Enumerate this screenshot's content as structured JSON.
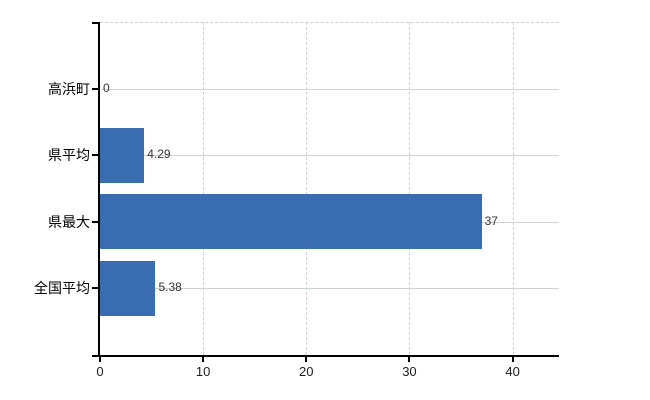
{
  "page": {
    "background": "#ffffff"
  },
  "chart_data": {
    "type": "bar",
    "orientation": "horizontal",
    "title": "",
    "categories": [
      "高浜町",
      "県平均",
      "県最大",
      "全国平均"
    ],
    "values": [
      0,
      4.29,
      37,
      5.38
    ],
    "value_labels": [
      "0",
      "4.29",
      "37",
      "5.38"
    ],
    "x_ticks": [
      0,
      10,
      20,
      30,
      40
    ],
    "x_tick_labels": [
      "0",
      "10",
      "20",
      "30",
      "40"
    ],
    "xlim": [
      0,
      44.5
    ],
    "grid": true,
    "legend": false,
    "colors": {
      "bar": "#3a6cb1",
      "axis": "#000000",
      "gridline_h": "#ccd5cc",
      "gridline_v": "#d7d0d7",
      "plot_top_border": "#d0d0d0",
      "category_text": "#000000",
      "tick_text": "#1a1a1a",
      "value_text": "#333333"
    }
  }
}
